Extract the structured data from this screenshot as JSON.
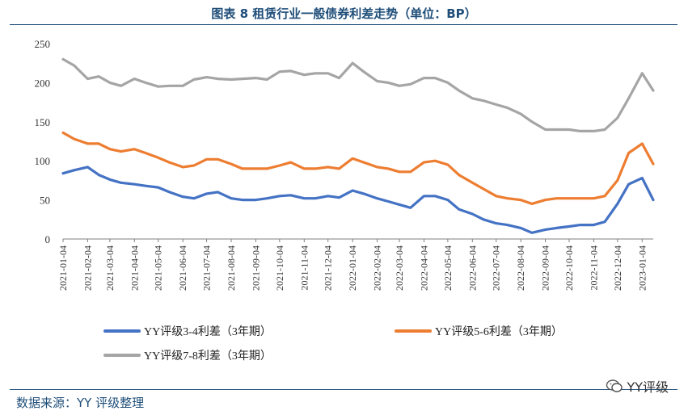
{
  "title": "图表 8 租赁行业一般债券利差走势（单位：BP）",
  "source": "数据来源：YY 评级整理",
  "watermark": "YY评级",
  "colors": {
    "series1": "#4472c4",
    "series2": "#ed7d31",
    "series3": "#a5a5a5",
    "title": "#1f4e79"
  },
  "chart_data": {
    "type": "line",
    "title": "图表 8 租赁行业一般债券利差走势（单位：BP）",
    "xlabel": "",
    "ylabel": "",
    "ylim": [
      0,
      250
    ],
    "yticks": [
      0,
      50,
      100,
      150,
      200,
      250
    ],
    "grid": false,
    "legend_position": "bottom",
    "x_ticks": [
      "2021-01-04",
      "2021-02-04",
      "2021-03-04",
      "2021-04-04",
      "2021-05-04",
      "2021-06-04",
      "2021-07-04",
      "2021-08-04",
      "2021-09-04",
      "2021-10-04",
      "2021-11-04",
      "2021-12-04",
      "2022-01-04",
      "2022-02-04",
      "2022-03-04",
      "2022-04-04",
      "2022-05-04",
      "2022-06-04",
      "2022-07-04",
      "2022-08-04",
      "2022-09-04",
      "2022-10-04",
      "2022-11-04",
      "2022-12-04",
      "2023-01-04"
    ],
    "x": [
      "2021-01-04",
      "2021-01-18",
      "2021-02-04",
      "2021-02-18",
      "2021-03-04",
      "2021-03-18",
      "2021-04-04",
      "2021-04-18",
      "2021-05-04",
      "2021-05-18",
      "2021-06-04",
      "2021-06-18",
      "2021-07-04",
      "2021-07-18",
      "2021-08-04",
      "2021-08-18",
      "2021-09-04",
      "2021-09-18",
      "2021-10-04",
      "2021-10-18",
      "2021-11-04",
      "2021-11-18",
      "2021-12-04",
      "2021-12-18",
      "2022-01-04",
      "2022-01-18",
      "2022-02-04",
      "2022-02-18",
      "2022-03-04",
      "2022-03-18",
      "2022-04-04",
      "2022-04-18",
      "2022-05-04",
      "2022-05-18",
      "2022-06-04",
      "2022-06-18",
      "2022-07-04",
      "2022-07-18",
      "2022-08-04",
      "2022-08-18",
      "2022-09-04",
      "2022-09-18",
      "2022-10-04",
      "2022-10-18",
      "2022-11-04",
      "2022-11-18",
      "2022-12-04",
      "2022-12-18",
      "2023-01-04",
      "2023-01-18"
    ],
    "series": [
      {
        "name": "YY评级3-4利差（3年期）",
        "values": [
          84,
          88,
          92,
          82,
          76,
          72,
          70,
          68,
          66,
          60,
          54,
          52,
          58,
          60,
          52,
          50,
          50,
          52,
          55,
          56,
          52,
          52,
          55,
          53,
          62,
          58,
          52,
          48,
          44,
          40,
          55,
          55,
          50,
          38,
          32,
          25,
          20,
          18,
          14,
          8,
          12,
          14,
          16,
          18,
          18,
          22,
          45,
          70,
          78,
          50
        ]
      },
      {
        "name": "YY评级5-6利差（3年期）",
        "values": [
          136,
          128,
          122,
          122,
          115,
          112,
          115,
          110,
          104,
          98,
          92,
          94,
          102,
          102,
          96,
          90,
          90,
          90,
          94,
          98,
          90,
          90,
          92,
          90,
          103,
          98,
          92,
          90,
          86,
          86,
          98,
          100,
          95,
          82,
          72,
          64,
          55,
          52,
          50,
          45,
          50,
          52,
          52,
          52,
          52,
          55,
          75,
          110,
          122,
          96
        ]
      },
      {
        "name": "YY评级7-8利差（3年期）",
        "values": [
          230,
          222,
          205,
          208,
          200,
          196,
          205,
          200,
          195,
          196,
          196,
          204,
          207,
          205,
          204,
          205,
          206,
          204,
          214,
          215,
          210,
          212,
          212,
          206,
          225,
          214,
          202,
          200,
          196,
          198,
          206,
          206,
          200,
          190,
          180,
          177,
          172,
          168,
          160,
          150,
          140,
          140,
          140,
          138,
          138,
          140,
          155,
          180,
          212,
          190
        ]
      }
    ]
  }
}
